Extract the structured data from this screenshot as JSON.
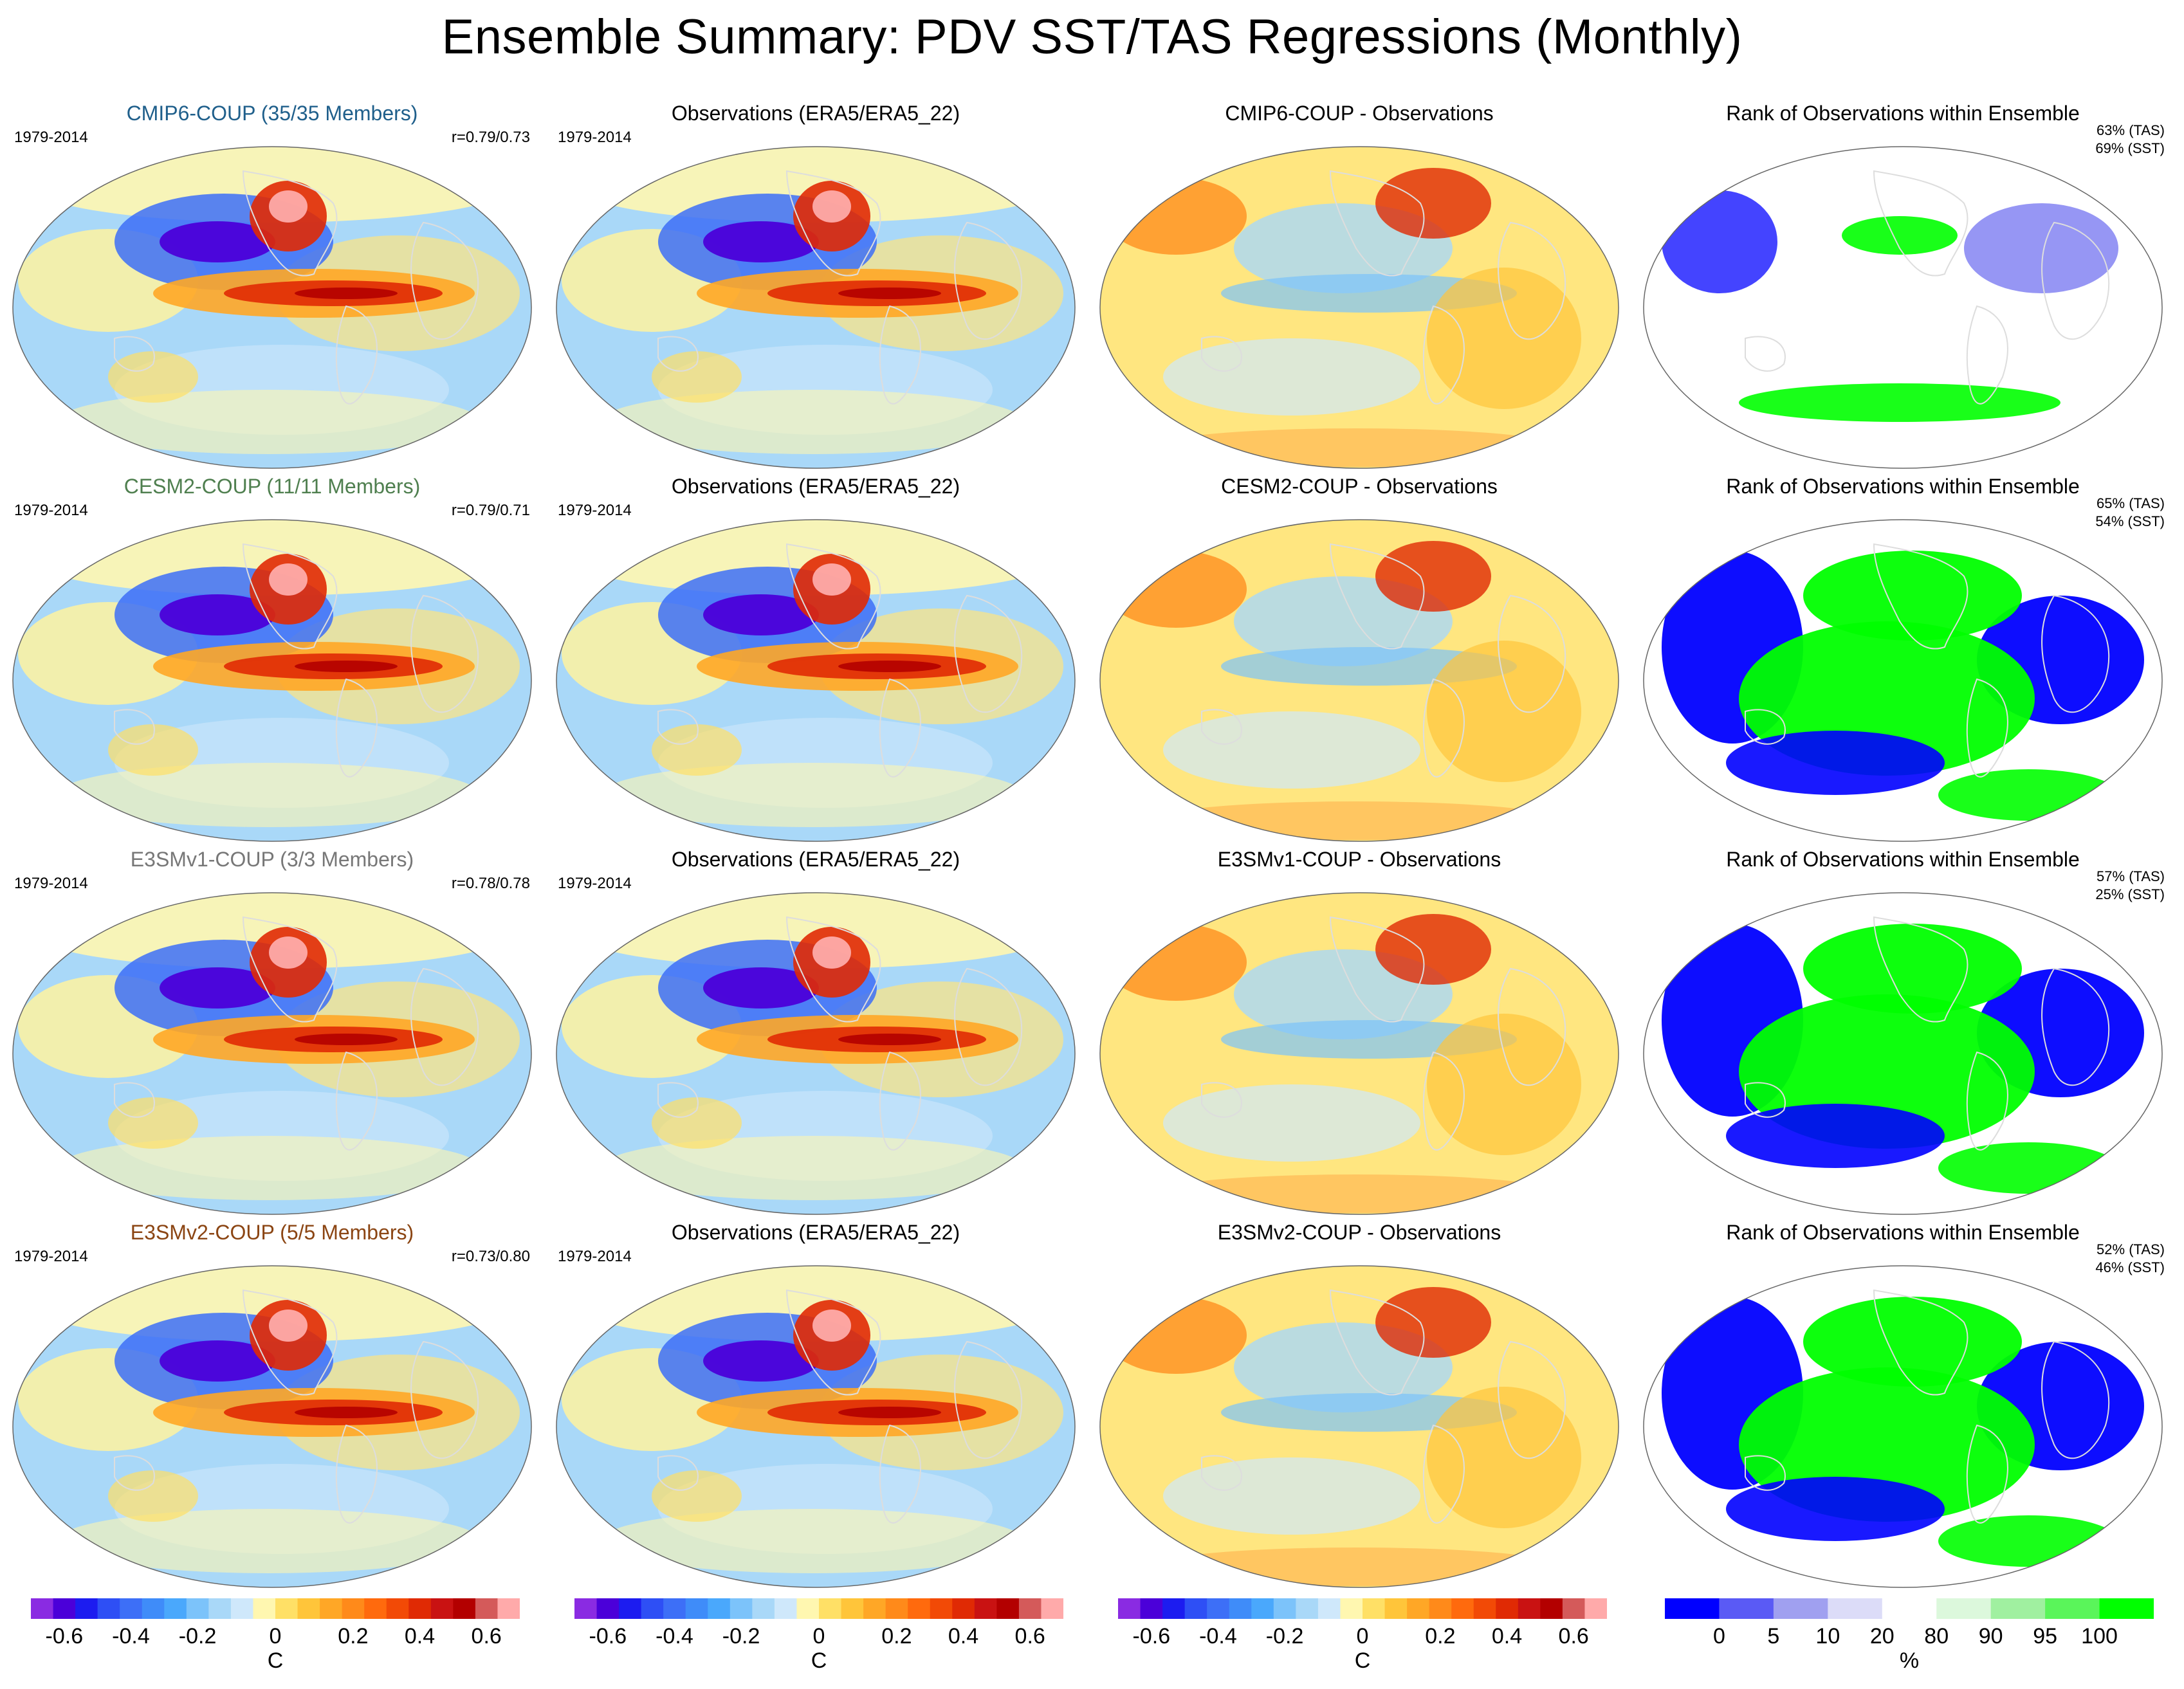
{
  "title": "Ensemble Summary: PDV SST/TAS Regressions (Monthly)",
  "rows": [
    {
      "model": {
        "title": "CMIP6-COUP (35/35 Members)",
        "color": "#1f5f8b",
        "years": "1979-2014",
        "corr": "r=0.79/0.73"
      },
      "obs": {
        "title": "Observations (ERA5/ERA5_22)",
        "years": "1979-2014"
      },
      "diff": {
        "title": "CMIP6-COUP - Observations"
      },
      "rank": {
        "title": "Rank of Observations within Ensemble",
        "tas": "63% (TAS)",
        "sst": "69% (SST)"
      }
    },
    {
      "model": {
        "title": "CESM2-COUP (11/11 Members)",
        "color": "#4f7f4f",
        "years": "1979-2014",
        "corr": "r=0.79/0.71"
      },
      "obs": {
        "title": "Observations (ERA5/ERA5_22)",
        "years": "1979-2014"
      },
      "diff": {
        "title": "CESM2-COUP - Observations"
      },
      "rank": {
        "title": "Rank of Observations within Ensemble",
        "tas": "65% (TAS)",
        "sst": "54% (SST)"
      }
    },
    {
      "model": {
        "title": "E3SMv1-COUP (3/3 Members)",
        "color": "#777777",
        "years": "1979-2014",
        "corr": "r=0.78/0.78"
      },
      "obs": {
        "title": "Observations (ERA5/ERA5_22)",
        "years": "1979-2014"
      },
      "diff": {
        "title": "E3SMv1-COUP - Observations"
      },
      "rank": {
        "title": "Rank of Observations within Ensemble",
        "tas": "57% (TAS)",
        "sst": "25% (SST)"
      }
    },
    {
      "model": {
        "title": "E3SMv2-COUP (5/5 Members)",
        "color": "#8b4513",
        "years": "1979-2014",
        "corr": "r=0.73/0.80"
      },
      "obs": {
        "title": "Observations (ERA5/ERA5_22)",
        "years": "1979-2014"
      },
      "diff": {
        "title": "E3SMv2-COUP - Observations"
      },
      "rank": {
        "title": "Rank of Observations within Ensemble",
        "tas": "52% (TAS)",
        "sst": "46% (SST)"
      }
    }
  ],
  "colorbars": {
    "regression": {
      "ticks": [
        "-0.6",
        "-0.4",
        "-0.2",
        "0",
        "0.2",
        "0.4",
        "0.6"
      ],
      "unit": "C",
      "colors": [
        "#8a2be2",
        "#4b00d9",
        "#1c1cf0",
        "#2e4ff5",
        "#3d6ff7",
        "#3f8cf9",
        "#4aa8fc",
        "#7cc3fa",
        "#a9d8f8",
        "#cfe8fb",
        "#fff7b0",
        "#ffe066",
        "#ffc53a",
        "#ffa726",
        "#ff8a1a",
        "#ff6a0d",
        "#f24a06",
        "#e02a04",
        "#c91212",
        "#b30000",
        "#d45a5a",
        "#ffaaaa"
      ]
    },
    "rank": {
      "ticks": [
        "0",
        "5",
        "10",
        "20",
        "80",
        "90",
        "95",
        "100"
      ],
      "unit": "%",
      "colors": [
        "#0000ff",
        "#5a5af5",
        "#a0a0f0",
        "#dcdcf8",
        "#ffffff",
        "#dcf8dc",
        "#a0f0a0",
        "#5af55a",
        "#00ff00"
      ]
    }
  }
}
